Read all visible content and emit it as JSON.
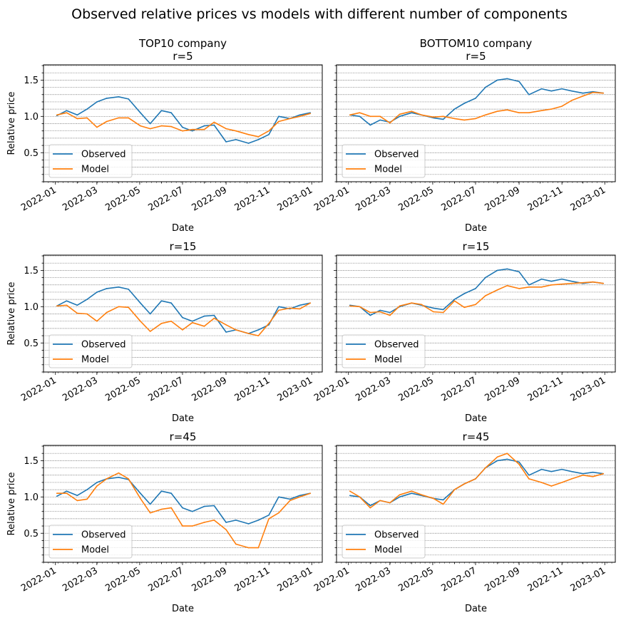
{
  "figure_title": "Observed relative prices vs models with different number of components",
  "colors": {
    "observed": "#1f77b4",
    "model": "#ff7f0e",
    "grid": "#555555"
  },
  "x_tick_labels": [
    "2022-01",
    "2022-03",
    "2022-05",
    "2022-07",
    "2022-09",
    "2022-11",
    "2023-01"
  ],
  "y_tick_labels": [
    "0.5",
    "1.0",
    "1.5"
  ],
  "chart_data": [
    {
      "type": "line",
      "row": 1,
      "col": 1,
      "title_lines": [
        "TOP10 company",
        "r=5"
      ],
      "xlabel": "Date",
      "ylabel": "Relative price",
      "ylim": [
        0.1,
        1.71
      ],
      "xlim": [
        "2021-12-15",
        "2023-01-16"
      ],
      "grid": "horizontal dotted minor",
      "legend": "lower left",
      "x": [
        "2022-01-03",
        "2022-01-17",
        "2022-02-01",
        "2022-02-15",
        "2022-03-01",
        "2022-03-15",
        "2022-04-01",
        "2022-04-15",
        "2022-05-02",
        "2022-05-16",
        "2022-06-01",
        "2022-06-15",
        "2022-07-01",
        "2022-07-15",
        "2022-08-01",
        "2022-08-15",
        "2022-09-01",
        "2022-09-15",
        "2022-10-03",
        "2022-10-17",
        "2022-11-01",
        "2022-11-15",
        "2022-12-01",
        "2022-12-15",
        "2022-12-30"
      ],
      "series": [
        {
          "name": "Observed",
          "values": [
            1.01,
            1.08,
            1.02,
            1.1,
            1.2,
            1.25,
            1.27,
            1.24,
            1.05,
            0.9,
            1.08,
            1.05,
            0.85,
            0.8,
            0.87,
            0.88,
            0.65,
            0.68,
            0.63,
            0.68,
            0.75,
            1.0,
            0.97,
            1.02,
            1.05
          ]
        },
        {
          "name": "Model",
          "values": [
            1.02,
            1.05,
            0.97,
            0.98,
            0.85,
            0.93,
            0.98,
            0.98,
            0.87,
            0.83,
            0.87,
            0.86,
            0.8,
            0.82,
            0.82,
            0.92,
            0.83,
            0.8,
            0.75,
            0.72,
            0.8,
            0.93,
            0.97,
            1.0,
            1.04
          ]
        }
      ]
    },
    {
      "type": "line",
      "row": 1,
      "col": 2,
      "title_lines": [
        "BOTTOM10 company",
        "r=5"
      ],
      "xlabel": "Date",
      "ylabel": "",
      "ylim": [
        0.1,
        1.71
      ],
      "xlim": [
        "2021-12-15",
        "2023-01-16"
      ],
      "grid": "horizontal dotted minor",
      "legend": "lower left",
      "x": [
        "2022-01-03",
        "2022-01-17",
        "2022-02-01",
        "2022-02-15",
        "2022-03-01",
        "2022-03-15",
        "2022-04-01",
        "2022-04-15",
        "2022-05-02",
        "2022-05-16",
        "2022-06-01",
        "2022-06-15",
        "2022-07-01",
        "2022-07-15",
        "2022-08-01",
        "2022-08-15",
        "2022-09-01",
        "2022-09-15",
        "2022-10-03",
        "2022-10-17",
        "2022-11-01",
        "2022-11-15",
        "2022-12-01",
        "2022-12-15",
        "2022-12-30"
      ],
      "series": [
        {
          "name": "Observed",
          "values": [
            1.02,
            1.0,
            0.88,
            0.95,
            0.92,
            1.0,
            1.05,
            1.02,
            0.98,
            0.96,
            1.1,
            1.18,
            1.25,
            1.4,
            1.5,
            1.52,
            1.48,
            1.3,
            1.38,
            1.35,
            1.38,
            1.35,
            1.32,
            1.34,
            1.32
          ]
        },
        {
          "name": "Model",
          "values": [
            1.02,
            1.05,
            1.0,
            1.0,
            0.91,
            1.03,
            1.07,
            1.02,
            0.99,
            1.0,
            0.97,
            0.95,
            0.97,
            1.02,
            1.07,
            1.09,
            1.05,
            1.05,
            1.08,
            1.1,
            1.14,
            1.22,
            1.28,
            1.33,
            1.32
          ]
        }
      ]
    },
    {
      "type": "line",
      "row": 2,
      "col": 1,
      "title_lines": [
        "r=15"
      ],
      "xlabel": "Date",
      "ylabel": "Relative price",
      "ylim": [
        0.1,
        1.71
      ],
      "xlim": [
        "2021-12-15",
        "2023-01-16"
      ],
      "grid": "horizontal dotted minor",
      "legend": "lower left",
      "x": [
        "2022-01-03",
        "2022-01-17",
        "2022-02-01",
        "2022-02-15",
        "2022-03-01",
        "2022-03-15",
        "2022-04-01",
        "2022-04-15",
        "2022-05-02",
        "2022-05-16",
        "2022-06-01",
        "2022-06-15",
        "2022-07-01",
        "2022-07-15",
        "2022-08-01",
        "2022-08-15",
        "2022-09-01",
        "2022-09-15",
        "2022-10-03",
        "2022-10-17",
        "2022-11-01",
        "2022-11-15",
        "2022-12-01",
        "2022-12-15",
        "2022-12-30"
      ],
      "series": [
        {
          "name": "Observed",
          "values": [
            1.01,
            1.08,
            1.02,
            1.1,
            1.2,
            1.25,
            1.27,
            1.24,
            1.05,
            0.9,
            1.08,
            1.05,
            0.85,
            0.8,
            0.87,
            0.88,
            0.65,
            0.68,
            0.63,
            0.68,
            0.75,
            1.0,
            0.97,
            1.02,
            1.05
          ]
        },
        {
          "name": "Model",
          "values": [
            1.01,
            1.02,
            0.91,
            0.9,
            0.8,
            0.92,
            1.0,
            0.99,
            0.8,
            0.66,
            0.77,
            0.8,
            0.68,
            0.78,
            0.73,
            0.84,
            0.75,
            0.68,
            0.63,
            0.6,
            0.77,
            0.95,
            0.98,
            0.97,
            1.05
          ]
        }
      ]
    },
    {
      "type": "line",
      "row": 2,
      "col": 2,
      "title_lines": [
        "r=15"
      ],
      "xlabel": "Date",
      "ylabel": "",
      "ylim": [
        0.1,
        1.71
      ],
      "xlim": [
        "2021-12-15",
        "2023-01-16"
      ],
      "grid": "horizontal dotted minor",
      "legend": "lower left",
      "x": [
        "2022-01-03",
        "2022-01-17",
        "2022-02-01",
        "2022-02-15",
        "2022-03-01",
        "2022-03-15",
        "2022-04-01",
        "2022-04-15",
        "2022-05-02",
        "2022-05-16",
        "2022-06-01",
        "2022-06-15",
        "2022-07-01",
        "2022-07-15",
        "2022-08-01",
        "2022-08-15",
        "2022-09-01",
        "2022-09-15",
        "2022-10-03",
        "2022-10-17",
        "2022-11-01",
        "2022-11-15",
        "2022-12-01",
        "2022-12-15",
        "2022-12-30"
      ],
      "series": [
        {
          "name": "Observed",
          "values": [
            1.02,
            1.0,
            0.88,
            0.95,
            0.92,
            1.0,
            1.05,
            1.02,
            0.98,
            0.96,
            1.1,
            1.18,
            1.25,
            1.4,
            1.5,
            1.52,
            1.48,
            1.3,
            1.38,
            1.35,
            1.38,
            1.35,
            1.32,
            1.34,
            1.32
          ]
        },
        {
          "name": "Model",
          "values": [
            1.01,
            1.0,
            0.92,
            0.93,
            0.88,
            1.01,
            1.05,
            1.03,
            0.93,
            0.92,
            1.08,
            0.99,
            1.03,
            1.15,
            1.23,
            1.29,
            1.25,
            1.27,
            1.27,
            1.3,
            1.31,
            1.32,
            1.33,
            1.34,
            1.32
          ]
        }
      ]
    },
    {
      "type": "line",
      "row": 3,
      "col": 1,
      "title_lines": [
        "r=45"
      ],
      "xlabel": "Date",
      "ylabel": "Relative price",
      "ylim": [
        0.1,
        1.71
      ],
      "xlim": [
        "2021-12-15",
        "2023-01-16"
      ],
      "grid": "horizontal dotted minor",
      "legend": "lower left",
      "x": [
        "2022-01-03",
        "2022-01-17",
        "2022-02-01",
        "2022-02-15",
        "2022-03-01",
        "2022-03-15",
        "2022-04-01",
        "2022-04-15",
        "2022-05-02",
        "2022-05-16",
        "2022-06-01",
        "2022-06-15",
        "2022-07-01",
        "2022-07-15",
        "2022-08-01",
        "2022-08-15",
        "2022-09-01",
        "2022-09-15",
        "2022-10-03",
        "2022-10-17",
        "2022-11-01",
        "2022-11-15",
        "2022-12-01",
        "2022-12-15",
        "2022-12-30"
      ],
      "series": [
        {
          "name": "Observed",
          "values": [
            1.01,
            1.08,
            1.02,
            1.1,
            1.2,
            1.25,
            1.27,
            1.24,
            1.05,
            0.9,
            1.08,
            1.05,
            0.85,
            0.8,
            0.87,
            0.88,
            0.65,
            0.68,
            0.63,
            0.68,
            0.75,
            1.0,
            0.97,
            1.02,
            1.05
          ]
        },
        {
          "name": "Model",
          "values": [
            1.05,
            1.05,
            0.95,
            0.97,
            1.15,
            1.25,
            1.33,
            1.25,
            0.98,
            0.78,
            0.83,
            0.85,
            0.6,
            0.6,
            0.65,
            0.68,
            0.55,
            0.35,
            0.3,
            0.3,
            0.7,
            0.78,
            0.95,
            1.0,
            1.05
          ]
        }
      ]
    },
    {
      "type": "line",
      "row": 3,
      "col": 2,
      "title_lines": [
        "r=45"
      ],
      "xlabel": "Date",
      "ylabel": "",
      "ylim": [
        0.1,
        1.71
      ],
      "xlim": [
        "2021-12-15",
        "2023-01-16"
      ],
      "grid": "horizontal dotted minor",
      "legend": "lower left",
      "x": [
        "2022-01-03",
        "2022-01-17",
        "2022-02-01",
        "2022-02-15",
        "2022-03-01",
        "2022-03-15",
        "2022-04-01",
        "2022-04-15",
        "2022-05-02",
        "2022-05-16",
        "2022-06-01",
        "2022-06-15",
        "2022-07-01",
        "2022-07-15",
        "2022-08-01",
        "2022-08-15",
        "2022-09-01",
        "2022-09-15",
        "2022-10-03",
        "2022-10-17",
        "2022-11-01",
        "2022-11-15",
        "2022-12-01",
        "2022-12-15",
        "2022-12-30"
      ],
      "series": [
        {
          "name": "Observed",
          "values": [
            1.02,
            1.0,
            0.88,
            0.95,
            0.92,
            1.0,
            1.05,
            1.02,
            0.98,
            0.96,
            1.1,
            1.18,
            1.25,
            1.4,
            1.5,
            1.52,
            1.48,
            1.3,
            1.38,
            1.35,
            1.38,
            1.35,
            1.32,
            1.34,
            1.32
          ]
        },
        {
          "name": "Model",
          "values": [
            1.08,
            1.0,
            0.85,
            0.95,
            0.92,
            1.03,
            1.08,
            1.03,
            0.98,
            0.9,
            1.1,
            1.18,
            1.25,
            1.4,
            1.55,
            1.6,
            1.45,
            1.25,
            1.2,
            1.15,
            1.2,
            1.25,
            1.3,
            1.28,
            1.32
          ]
        }
      ]
    }
  ]
}
